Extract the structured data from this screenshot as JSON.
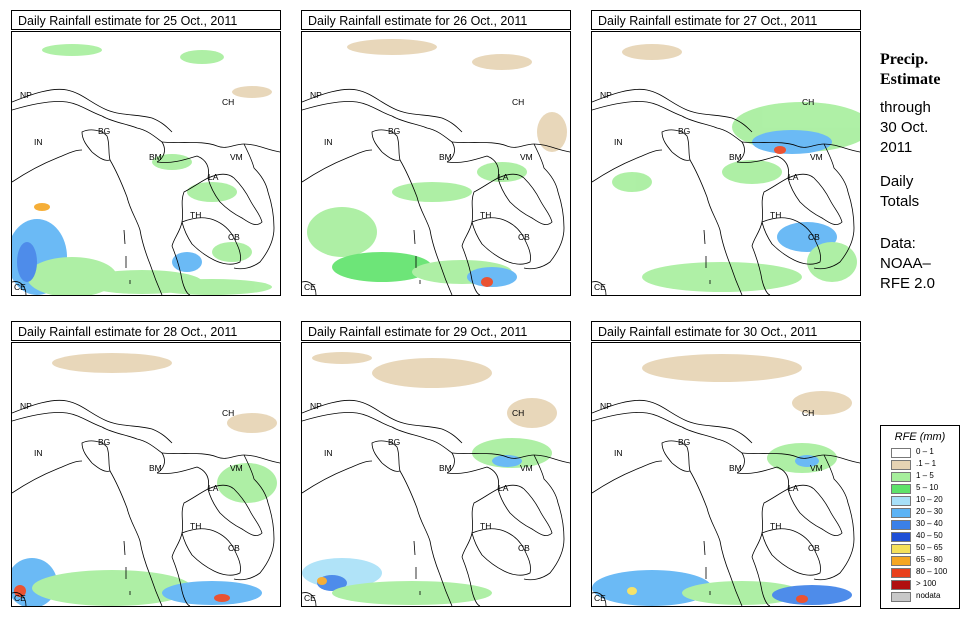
{
  "panels": [
    {
      "title": "Daily Rainfall estimate for  25 Oct., 2011"
    },
    {
      "title": "Daily Rainfall estimate for  26 Oct., 2011"
    },
    {
      "title": "Daily Rainfall estimate for  27 Oct., 2011"
    },
    {
      "title": "Daily Rainfall estimate for  28 Oct., 2011"
    },
    {
      "title": "Daily Rainfall estimate for  29 Oct., 2011"
    },
    {
      "title": "Daily Rainfall estimate for  30 Oct., 2011"
    }
  ],
  "countries": {
    "np": "NP",
    "ch": "CH",
    "in": "IN",
    "bg": "BG",
    "bm": "BM",
    "vm": "VM",
    "la": "LA",
    "th": "TH",
    "cb": "CB",
    "ce": "CE"
  },
  "side": {
    "heading_line1": "Precip.",
    "heading_line2": "Estimate",
    "through": "through",
    "date_line1": "30 Oct.",
    "date_line2": "2011",
    "daily_line1": "Daily",
    "daily_line2": "Totals",
    "data_line1": "Data:",
    "data_line2": "NOAA–",
    "data_line3": "RFE 2.0"
  },
  "legend": {
    "title": "RFE (mm)",
    "items": [
      {
        "label": "0 – 1",
        "color": "#ffffff"
      },
      {
        "label": ".1 – 1",
        "color": "#e6d3b3"
      },
      {
        "label": "1 – 5",
        "color": "#a6ee9c"
      },
      {
        "label": "5 – 10",
        "color": "#5ee36a"
      },
      {
        "label": "10 – 20",
        "color": "#a8e0f8"
      },
      {
        "label": "20 – 30",
        "color": "#5cb3f5"
      },
      {
        "label": "30 – 40",
        "color": "#3b80e8"
      },
      {
        "label": "40 – 50",
        "color": "#1f4fd6"
      },
      {
        "label": "50 – 65",
        "color": "#f5e05a"
      },
      {
        "label": "65 – 80",
        "color": "#f5a623"
      },
      {
        "label": "80 – 100",
        "color": "#e8401c"
      },
      {
        "label": "> 100",
        "color": "#b01010"
      },
      {
        "label": "nodata",
        "color": "#c8c8c8"
      }
    ]
  }
}
